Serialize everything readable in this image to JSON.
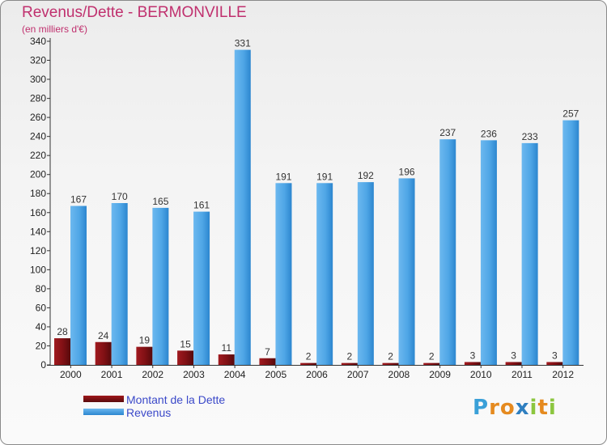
{
  "chart_data": {
    "type": "bar",
    "title": "Revenus/Dette - BERMONVILLE",
    "subtitle": "(en milliers d'€)",
    "categories": [
      "2000",
      "2001",
      "2002",
      "2003",
      "2004",
      "2005",
      "2006",
      "2007",
      "2008",
      "2009",
      "2010",
      "2011",
      "2012"
    ],
    "series": [
      {
        "name": "Montant de la Dette",
        "color": "#7a0f12",
        "values": [
          28,
          24,
          19,
          15,
          11,
          7,
          2,
          2,
          2,
          2,
          3,
          3,
          3
        ]
      },
      {
        "name": "Revenus",
        "color": "#3d9de3",
        "values": [
          167,
          170,
          165,
          161,
          331,
          191,
          191,
          192,
          196,
          237,
          236,
          233,
          257
        ]
      }
    ],
    "ylim": [
      0,
      340
    ],
    "yticks": [
      0,
      20,
      40,
      60,
      80,
      100,
      120,
      140,
      160,
      180,
      200,
      220,
      240,
      260,
      280,
      300,
      320,
      340
    ],
    "grid": false,
    "legend": "bottom-left"
  },
  "legend": {
    "debt_label": "Montant de la Dette",
    "revenue_label": "Revenus"
  },
  "logo": {
    "text": "Proxiti",
    "letters": [
      "P",
      "r",
      "o",
      "x",
      "i",
      "t",
      "i"
    ],
    "colors": [
      "#3aa0d8",
      "#e58a1f",
      "#e58a1f",
      "#2f7fc0",
      "#8cc63f",
      "#e58a1f",
      "#8cc63f"
    ]
  }
}
